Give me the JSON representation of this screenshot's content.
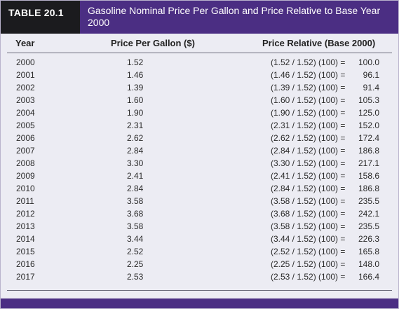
{
  "table": {
    "label": "TABLE 20.1",
    "title": "Gasoline Nominal Price Per Gallon and Price Relative to Base Year 2000",
    "columns": {
      "year": "Year",
      "price": "Price Per Gallon ($)",
      "relative": "Price Relative (Base 2000)"
    },
    "rows": [
      {
        "year": "2000",
        "price": "1.52",
        "expr": "(1.52 / 1.52) (100) =",
        "value": "100.0"
      },
      {
        "year": "2001",
        "price": "1.46",
        "expr": "(1.46 / 1.52) (100) =",
        "value": "96.1"
      },
      {
        "year": "2002",
        "price": "1.39",
        "expr": "(1.39 / 1.52) (100) =",
        "value": "91.4"
      },
      {
        "year": "2003",
        "price": "1.60",
        "expr": "(1.60 / 1.52) (100) =",
        "value": "105.3"
      },
      {
        "year": "2004",
        "price": "1.90",
        "expr": "(1.90 / 1.52) (100) =",
        "value": "125.0"
      },
      {
        "year": "2005",
        "price": "2.31",
        "expr": "(2.31 / 1.52) (100) =",
        "value": "152.0"
      },
      {
        "year": "2006",
        "price": "2.62",
        "expr": "(2.62 / 1.52) (100) =",
        "value": "172.4"
      },
      {
        "year": "2007",
        "price": "2.84",
        "expr": "(2.84 / 1.52) (100) =",
        "value": "186.8"
      },
      {
        "year": "2008",
        "price": "3.30",
        "expr": "(3.30 / 1.52) (100) =",
        "value": "217.1"
      },
      {
        "year": "2009",
        "price": "2.41",
        "expr": "(2.41 / 1.52) (100) =",
        "value": "158.6"
      },
      {
        "year": "2010",
        "price": "2.84",
        "expr": "(2.84 / 1.52) (100) =",
        "value": "186.8"
      },
      {
        "year": "2011",
        "price": "3.58",
        "expr": "(3.58 / 1.52) (100) =",
        "value": "235.5"
      },
      {
        "year": "2012",
        "price": "3.68",
        "expr": "(3.68 / 1.52) (100) =",
        "value": "242.1"
      },
      {
        "year": "2013",
        "price": "3.58",
        "expr": "(3.58 / 1.52) (100) =",
        "value": "235.5"
      },
      {
        "year": "2014",
        "price": "3.44",
        "expr": "(3.44 / 1.52) (100) =",
        "value": "226.3"
      },
      {
        "year": "2015",
        "price": "2.52",
        "expr": "(2.52 / 1.52) (100) =",
        "value": "165.8"
      },
      {
        "year": "2016",
        "price": "2.25",
        "expr": "(2.25 / 1.52) (100) =",
        "value": "148.0"
      },
      {
        "year": "2017",
        "price": "2.53",
        "expr": "(2.53 / 1.52) (100) =",
        "value": "166.4"
      }
    ]
  },
  "colors": {
    "header_purple": "#4b2e83",
    "label_black": "#1b1b1e",
    "body_background": "#ececf3"
  }
}
